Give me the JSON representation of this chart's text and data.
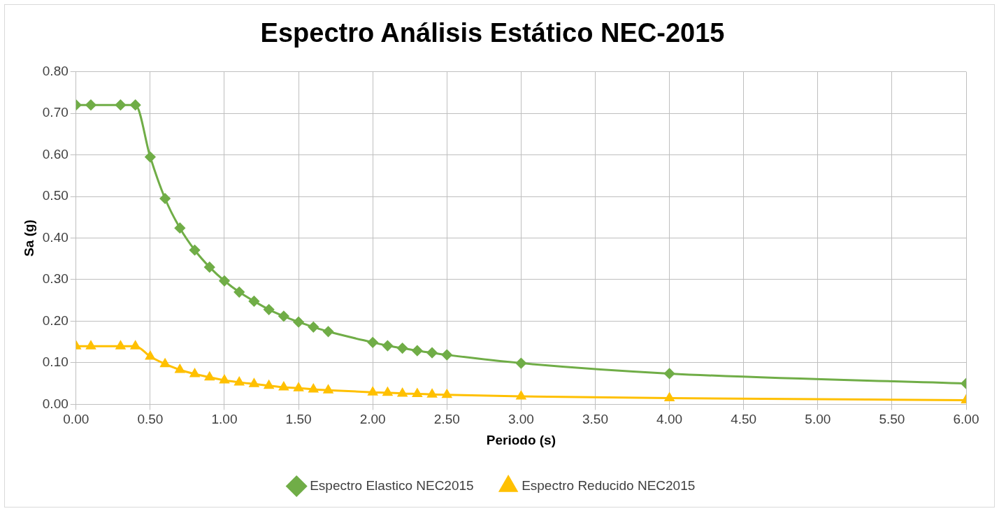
{
  "chart_data": {
    "type": "line",
    "title": "Espectro Análisis Estático NEC-2015",
    "xlabel": "Periodo (s)",
    "ylabel": "Sa (g)",
    "xlim": [
      0,
      6
    ],
    "ylim": [
      0,
      0.8
    ],
    "xticks": [
      {
        "value": 0,
        "label": "0.00"
      },
      {
        "value": 0.5,
        "label": "0.50"
      },
      {
        "value": 1,
        "label": "1.00"
      },
      {
        "value": 1.5,
        "label": "1.50"
      },
      {
        "value": 2,
        "label": "2.00"
      },
      {
        "value": 2.5,
        "label": "2.50"
      },
      {
        "value": 3,
        "label": "3.00"
      },
      {
        "value": 3.5,
        "label": "3.50"
      },
      {
        "value": 4,
        "label": "4.00"
      },
      {
        "value": 4.5,
        "label": "4.50"
      },
      {
        "value": 5,
        "label": "5.00"
      },
      {
        "value": 5.5,
        "label": "5.50"
      },
      {
        "value": 6,
        "label": "6.00"
      }
    ],
    "yticks": [
      {
        "value": 0,
        "label": "0.00"
      },
      {
        "value": 0.1,
        "label": "0.10"
      },
      {
        "value": 0.2,
        "label": "0.20"
      },
      {
        "value": 0.3,
        "label": "0.30"
      },
      {
        "value": 0.4,
        "label": "0.40"
      },
      {
        "value": 0.5,
        "label": "0.50"
      },
      {
        "value": 0.6,
        "label": "0.60"
      },
      {
        "value": 0.7,
        "label": "0.70"
      },
      {
        "value": 0.8,
        "label": "0.80"
      }
    ],
    "x": [
      0,
      0.1,
      0.3,
      0.4,
      0.5,
      0.6,
      0.7,
      0.8,
      0.9,
      1.0,
      1.1,
      1.2,
      1.3,
      1.4,
      1.5,
      1.6,
      1.7,
      2.0,
      2.1,
      2.2,
      2.3,
      2.4,
      2.5,
      3.0,
      4.0,
      6.0
    ],
    "series": [
      {
        "name": "Espectro Elastico NEC2015",
        "color": "#70ad47",
        "marker": "diamond",
        "values": [
          0.72,
          0.72,
          0.72,
          0.72,
          0.595,
          0.495,
          0.424,
          0.371,
          0.33,
          0.297,
          0.27,
          0.248,
          0.228,
          0.212,
          0.198,
          0.186,
          0.175,
          0.149,
          0.141,
          0.135,
          0.129,
          0.124,
          0.119,
          0.099,
          0.074,
          0.05
        ]
      },
      {
        "name": "Espectro Reducido NEC2015",
        "color": "#ffc000",
        "marker": "triangle",
        "values": [
          0.14,
          0.14,
          0.14,
          0.14,
          0.115,
          0.097,
          0.083,
          0.073,
          0.065,
          0.058,
          0.053,
          0.049,
          0.045,
          0.041,
          0.039,
          0.036,
          0.034,
          0.029,
          0.028,
          0.026,
          0.025,
          0.024,
          0.023,
          0.019,
          0.015,
          0.01
        ]
      }
    ],
    "grid": true,
    "legend": "bottom",
    "line_style": "solid"
  }
}
